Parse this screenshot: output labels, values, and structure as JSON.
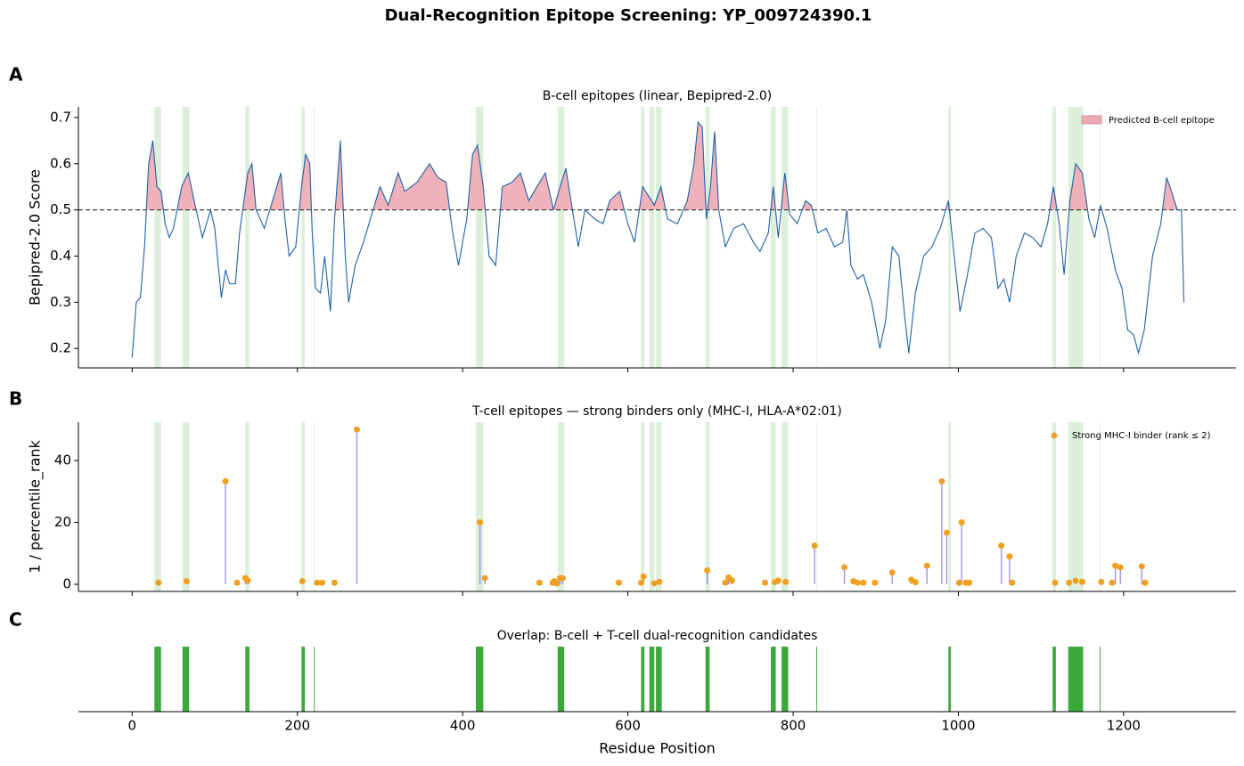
{
  "title": "Dual-Recognition Epitope Screening: YP_009724390.1",
  "chart_data": [
    {
      "type": "line",
      "panel_label": "A",
      "title": "B-cell epitopes (linear, Bepipred-2.0)",
      "ylabel": "Bepipred-2.0 Score",
      "color": "#2060a8",
      "threshold": 0.5,
      "fill": {
        "name": "Predicted B-cell epitope",
        "color": "#eeaab2"
      },
      "legend": "upper right",
      "xlim": [
        -65,
        1336
      ],
      "ylim": [
        0.158,
        0.723
      ],
      "yticks": [
        0.2,
        0.3,
        0.4,
        0.5,
        0.6,
        0.7
      ],
      "x": [
        0,
        5,
        10,
        15,
        20,
        25,
        30,
        35,
        40,
        45,
        50,
        60,
        68,
        75,
        85,
        95,
        100,
        108,
        113,
        118,
        125,
        130,
        140,
        145,
        150,
        160,
        170,
        180,
        185,
        190,
        198,
        205,
        210,
        215,
        218,
        222,
        228,
        233,
        240,
        245,
        252,
        258,
        262,
        270,
        280,
        290,
        300,
        310,
        322,
        330,
        345,
        360,
        370,
        380,
        388,
        395,
        405,
        412,
        418,
        425,
        432,
        440,
        448,
        460,
        470,
        480,
        490,
        500,
        510,
        518,
        525,
        532,
        540,
        548,
        560,
        570,
        578,
        590,
        600,
        608,
        618,
        625,
        632,
        640,
        648,
        660,
        672,
        680,
        685,
        690,
        695,
        700,
        705,
        710,
        718,
        728,
        740,
        752,
        760,
        770,
        776,
        782,
        790,
        796,
        805,
        815,
        822,
        830,
        840,
        850,
        860,
        865,
        870,
        878,
        885,
        895,
        905,
        912,
        920,
        928,
        935,
        940,
        948,
        958,
        968,
        978,
        988,
        995,
        1002,
        1010,
        1020,
        1030,
        1040,
        1048,
        1055,
        1062,
        1070,
        1080,
        1090,
        1100,
        1108,
        1115,
        1122,
        1128,
        1135,
        1142,
        1150,
        1158,
        1165,
        1172,
        1180,
        1190,
        1198,
        1205,
        1212,
        1218,
        1225,
        1235,
        1245,
        1252,
        1258,
        1265,
        1270,
        1273
      ],
      "values": [
        0.18,
        0.3,
        0.31,
        0.42,
        0.6,
        0.65,
        0.55,
        0.54,
        0.47,
        0.44,
        0.46,
        0.55,
        0.58,
        0.52,
        0.44,
        0.5,
        0.46,
        0.31,
        0.37,
        0.34,
        0.34,
        0.45,
        0.58,
        0.6,
        0.5,
        0.46,
        0.52,
        0.58,
        0.48,
        0.4,
        0.42,
        0.55,
        0.62,
        0.6,
        0.45,
        0.33,
        0.32,
        0.4,
        0.28,
        0.48,
        0.65,
        0.4,
        0.3,
        0.38,
        0.43,
        0.49,
        0.55,
        0.51,
        0.58,
        0.54,
        0.56,
        0.6,
        0.57,
        0.56,
        0.45,
        0.38,
        0.48,
        0.62,
        0.64,
        0.55,
        0.4,
        0.38,
        0.55,
        0.56,
        0.58,
        0.52,
        0.55,
        0.58,
        0.5,
        0.55,
        0.59,
        0.51,
        0.42,
        0.5,
        0.48,
        0.47,
        0.52,
        0.54,
        0.47,
        0.43,
        0.55,
        0.53,
        0.51,
        0.55,
        0.48,
        0.47,
        0.52,
        0.6,
        0.69,
        0.68,
        0.48,
        0.55,
        0.67,
        0.5,
        0.42,
        0.46,
        0.47,
        0.43,
        0.41,
        0.45,
        0.55,
        0.44,
        0.58,
        0.49,
        0.47,
        0.52,
        0.51,
        0.45,
        0.46,
        0.42,
        0.43,
        0.5,
        0.38,
        0.35,
        0.36,
        0.3,
        0.2,
        0.26,
        0.42,
        0.4,
        0.27,
        0.19,
        0.32,
        0.4,
        0.42,
        0.46,
        0.52,
        0.4,
        0.28,
        0.35,
        0.45,
        0.46,
        0.44,
        0.33,
        0.35,
        0.3,
        0.4,
        0.45,
        0.44,
        0.42,
        0.47,
        0.55,
        0.47,
        0.36,
        0.52,
        0.6,
        0.58,
        0.48,
        0.44,
        0.51,
        0.46,
        0.37,
        0.33,
        0.24,
        0.23,
        0.19,
        0.24,
        0.4,
        0.47,
        0.57,
        0.54,
        0.5,
        0.5,
        0.3
      ]
    },
    {
      "type": "stem",
      "panel_label": "B",
      "title": "T-cell epitopes — strong binders only (MHC-I, HLA-A*02:01)",
      "ylabel": "1 / percentile_rank",
      "series": [
        {
          "name": "Strong MHC-I binder (rank ≤ 2)",
          "color": "#f0a020",
          "stem_color": "#9a8cf0",
          "x": [
            32,
            66,
            113,
            127,
            137,
            140,
            206,
            224,
            230,
            245,
            272,
            421,
            427,
            493,
            509,
            511,
            514,
            518,
            521,
            589,
            616,
            619,
            632,
            638,
            696,
            718,
            722,
            726,
            766,
            778,
            782,
            791,
            826,
            862,
            873,
            878,
            885,
            899,
            920,
            943,
            948,
            962,
            980,
            986,
            1001,
            1004,
            1009,
            1013,
            1052,
            1062,
            1065,
            1117,
            1134,
            1142,
            1150,
            1173,
            1186,
            1190,
            1196,
            1222,
            1226
          ],
          "values": [
            0.5,
            1,
            33.3,
            0.5,
            2,
            1.2,
            1,
            0.5,
            0.5,
            0.5,
            50,
            20,
            2,
            0.5,
            0.5,
            1,
            0.3,
            2,
            2,
            0.5,
            0.5,
            2.5,
            0.3,
            0.8,
            4.5,
            0.5,
            2.2,
            1.2,
            0.5,
            0.7,
            1.2,
            0.8,
            12.5,
            5.5,
            1,
            0.5,
            0.5,
            0.5,
            3.8,
            1.5,
            0.7,
            6,
            33.3,
            16.7,
            0.5,
            20,
            0.5,
            0.5,
            12.5,
            9,
            0.5,
            0.5,
            0.5,
            1.2,
            0.8,
            0.8,
            0.5,
            6,
            5.5,
            5.8,
            0.5
          ]
        }
      ],
      "legend": "upper right",
      "xlim": [
        -65,
        1336
      ],
      "ylim": [
        -2.3,
        52.4
      ],
      "yticks": [
        0,
        20,
        40
      ]
    },
    {
      "type": "span",
      "panel_label": "C",
      "title": "Overlap: B-cell + T-cell dual-recognition candidates",
      "title_color": "#2ca02c",
      "color": "#3aa83a",
      "shade_color": "#2ca02c",
      "xlabel": "Residue Position",
      "regions": [
        [
          27,
          35
        ],
        [
          61,
          69
        ],
        [
          137,
          142
        ],
        [
          205,
          209
        ],
        [
          220,
          221
        ],
        [
          416,
          425
        ],
        [
          515,
          523
        ],
        [
          616,
          620
        ],
        [
          626,
          632
        ],
        [
          634,
          641
        ],
        [
          694,
          699
        ],
        [
          773,
          779
        ],
        [
          786,
          794
        ],
        [
          828,
          829
        ],
        [
          988,
          991
        ],
        [
          1114,
          1118
        ],
        [
          1133,
          1151
        ],
        [
          1171,
          1172
        ]
      ],
      "xlim": [
        -65,
        1336
      ],
      "xticks": [
        0,
        200,
        400,
        600,
        800,
        1000,
        1200
      ]
    }
  ]
}
